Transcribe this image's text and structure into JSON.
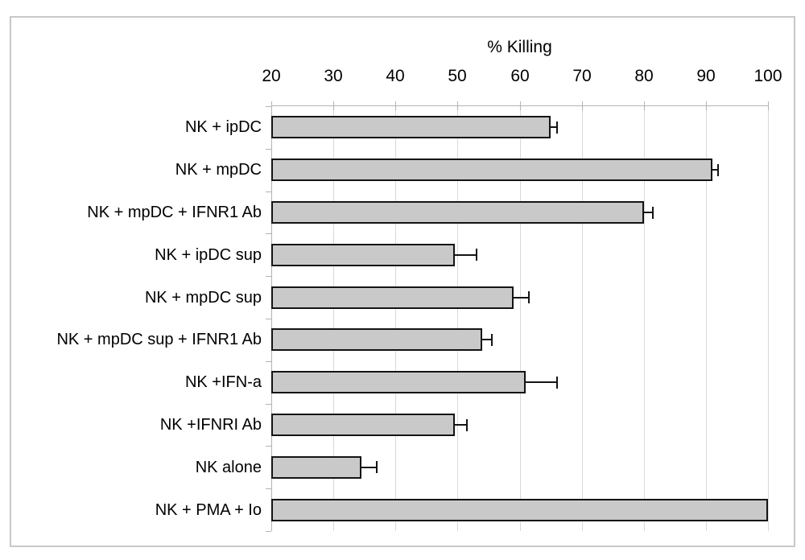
{
  "chart_data": {
    "type": "bar",
    "orientation": "horizontal",
    "title": "% Killing",
    "categories": [
      "NK + ipDC",
      "NK + mpDC",
      "NK + mpDC + IFNR1 Ab",
      "NK + ipDC sup",
      "NK + mpDC sup",
      "NK + mpDC sup + IFNR1 Ab",
      "NK +IFN-a",
      "NK +IFNRI Ab",
      "NK alone",
      "NK + PMA + Io"
    ],
    "values": [
      65,
      91,
      80,
      49.5,
      59,
      54,
      61,
      49.5,
      34.5,
      100
    ],
    "errors_plus": [
      1,
      1,
      1.5,
      3.5,
      2.5,
      1.5,
      5,
      2,
      2.5,
      0
    ],
    "xlabel": "% Killing",
    "xlim": [
      20,
      100
    ],
    "xticks": [
      20,
      30,
      40,
      50,
      60,
      70,
      80,
      90,
      100
    ],
    "grid": true,
    "legend": "none",
    "colors": {
      "bar_fill": "#c9c9c9",
      "bar_border": "#141414",
      "error_bar": "#141414",
      "gridline": "#d9d9d9",
      "axis": "#b3b3b3",
      "frame_border": "#c8c8c8",
      "background": "#ffffff",
      "text": "#000000"
    }
  }
}
